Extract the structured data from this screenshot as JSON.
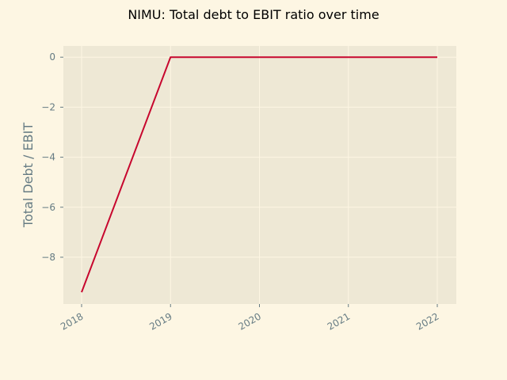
{
  "chart_data": {
    "type": "line",
    "title": "NIMU: Total debt to EBIT ratio over time",
    "xlabel": "",
    "ylabel": "Total Debt / EBIT",
    "x": [
      "2018",
      "2019",
      "2020",
      "2021",
      "2022"
    ],
    "series": [
      {
        "values": [
          -9.4,
          0.0,
          0.0,
          0.0,
          0.0
        ]
      }
    ],
    "ylim": [
      -9.87,
      0.45
    ],
    "yticks": [
      0,
      -2,
      -4,
      -6,
      -8
    ],
    "ytick_labels": [
      "0",
      "−2",
      "−4",
      "−6",
      "−8"
    ],
    "xtick_labels": [
      "2018",
      "2019",
      "2020",
      "2021",
      "2022"
    ],
    "grid": true,
    "legend": "none",
    "colors": {
      "background": "#fdf6e3",
      "plot_background": "#eee8d5",
      "grid": "#fdf6e3",
      "line": "#c7072e",
      "tick": "#657b83"
    }
  }
}
